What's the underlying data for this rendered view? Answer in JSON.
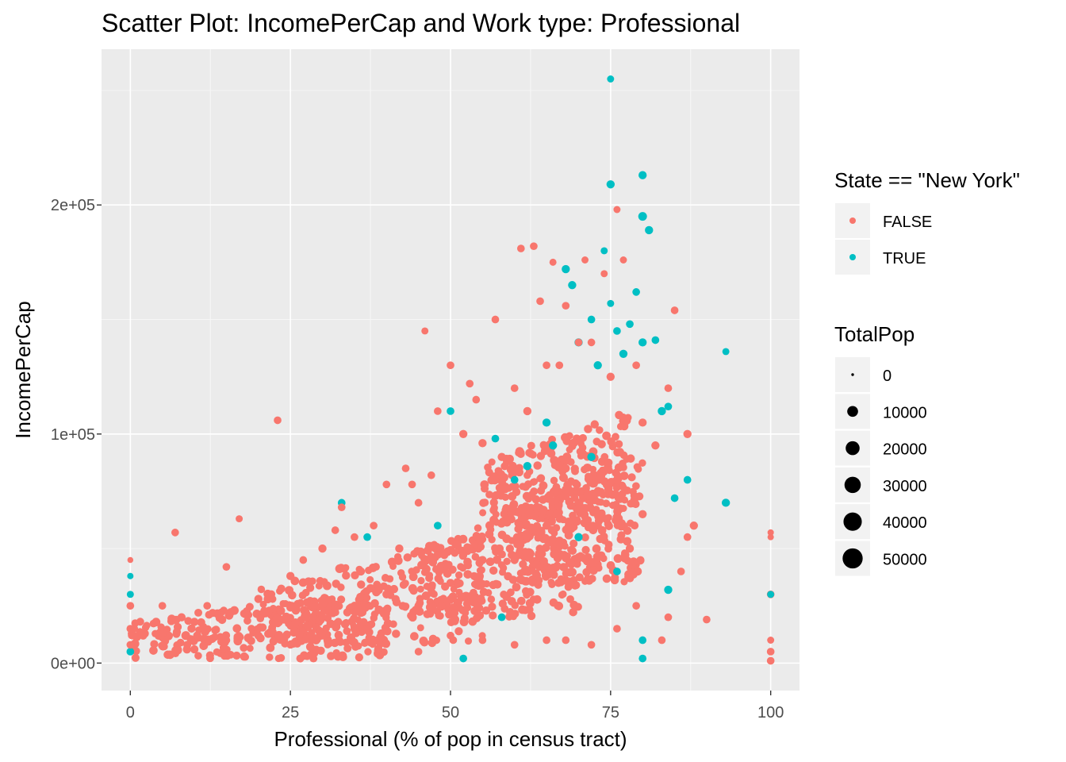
{
  "chart_data": {
    "type": "scatter",
    "title": "Scatter Plot: IncomePerCap and Work type: Professional",
    "xlabel": "Professional (% of pop in census tract)",
    "ylabel": "IncomePerCap",
    "xlim": [
      -4.5,
      104.5
    ],
    "ylim": [
      -12000,
      268000
    ],
    "x_ticks": [
      0,
      25,
      50,
      75,
      100
    ],
    "x_tick_labels": [
      "0",
      "25",
      "50",
      "75",
      "100"
    ],
    "y_ticks": [
      0,
      100000,
      200000
    ],
    "y_tick_labels": [
      "0e+00",
      "1e+05",
      "2e+05"
    ],
    "grid": true,
    "background": "#ebebeb",
    "gridline_color": "#ffffff",
    "legend_position": "right",
    "color_legend": {
      "title": "State == \"New York\"",
      "entries": [
        {
          "label": "FALSE",
          "color": "#f8766d"
        },
        {
          "label": "TRUE",
          "color": "#00bfc4"
        }
      ]
    },
    "size_legend": {
      "title": "TotalPop",
      "entries": [
        {
          "label": "0",
          "value": 0
        },
        {
          "label": "10000",
          "value": 10000
        },
        {
          "label": "20000",
          "value": 20000
        },
        {
          "label": "30000",
          "value": 30000
        },
        {
          "label": "40000",
          "value": 40000
        },
        {
          "label": "50000",
          "value": 50000
        }
      ]
    },
    "series": [
      {
        "state_is_new_york": "FALSE",
        "color": "#f8766d",
        "points": [
          [
            0,
            45000,
            1500
          ],
          [
            0,
            25000,
            4000
          ],
          [
            0,
            15000,
            4000
          ],
          [
            0,
            8000,
            4000
          ],
          [
            2,
            12000,
            5000
          ],
          [
            5,
            25000,
            4000
          ],
          [
            7,
            57000,
            4000
          ],
          [
            8,
            20000,
            5000
          ],
          [
            10,
            18000,
            5000
          ],
          [
            12,
            25000,
            4000
          ],
          [
            15,
            42000,
            4000
          ],
          [
            17,
            63000,
            3000
          ],
          [
            20,
            28000,
            5000
          ],
          [
            22,
            30000,
            5000
          ],
          [
            23,
            106000,
            4000
          ],
          [
            25,
            38000,
            5000
          ],
          [
            27,
            45000,
            4000
          ],
          [
            30,
            50000,
            5000
          ],
          [
            32,
            58000,
            4000
          ],
          [
            33,
            68000,
            4000
          ],
          [
            35,
            55000,
            4000
          ],
          [
            36,
            40000,
            5000
          ],
          [
            38,
            60000,
            4000
          ],
          [
            40,
            78000,
            4000
          ],
          [
            42,
            50000,
            5000
          ],
          [
            43,
            85000,
            4000
          ],
          [
            44,
            78000,
            4000
          ],
          [
            45,
            70000,
            4000
          ],
          [
            46,
            145000,
            3000
          ],
          [
            47,
            82000,
            4000
          ],
          [
            48,
            110000,
            4000
          ],
          [
            50,
            130000,
            4000
          ],
          [
            52,
            100000,
            5000
          ],
          [
            53,
            122000,
            4000
          ],
          [
            54,
            115000,
            4000
          ],
          [
            55,
            96000,
            5000
          ],
          [
            57,
            150000,
            4000
          ],
          [
            58,
            90000,
            5000
          ],
          [
            60,
            120000,
            4000
          ],
          [
            61,
            181000,
            4000
          ],
          [
            62,
            110000,
            5000
          ],
          [
            63,
            182000,
            4000
          ],
          [
            64,
            158000,
            4000
          ],
          [
            65,
            130000,
            4000
          ],
          [
            66,
            175000,
            3000
          ],
          [
            67,
            130000,
            4000
          ],
          [
            68,
            156000,
            4000
          ],
          [
            70,
            140000,
            4000
          ],
          [
            71,
            176000,
            3000
          ],
          [
            72,
            140000,
            4000
          ],
          [
            74,
            170000,
            3000
          ],
          [
            75,
            125000,
            5000
          ],
          [
            76,
            198000,
            3000
          ],
          [
            77,
            176000,
            3000
          ],
          [
            79,
            130000,
            4000
          ],
          [
            80,
            105000,
            5000
          ],
          [
            82,
            95000,
            5000
          ],
          [
            84,
            120000,
            4000
          ],
          [
            85,
            154000,
            4000
          ],
          [
            87,
            100000,
            5000
          ],
          [
            88,
            60000,
            5000
          ],
          [
            90,
            19000,
            4000
          ],
          [
            87,
            55000,
            4000
          ],
          [
            86,
            40000,
            4000
          ],
          [
            84,
            20000,
            4000
          ],
          [
            83,
            10000,
            4000
          ],
          [
            79,
            25000,
            4000
          ],
          [
            76,
            15000,
            4000
          ],
          [
            72,
            8000,
            4000
          ],
          [
            68,
            10000,
            4000
          ],
          [
            65,
            10000,
            4000
          ],
          [
            60,
            8000,
            4000
          ],
          [
            55,
            10000,
            4000
          ],
          [
            50,
            12000,
            4000
          ],
          [
            45,
            5000,
            4000
          ],
          [
            100,
            57000,
            2000
          ],
          [
            100,
            55000,
            2000
          ],
          [
            100,
            30000,
            4000
          ],
          [
            100,
            10000,
            3000
          ],
          [
            100,
            5000,
            4000
          ],
          [
            100,
            1000,
            4000
          ],
          [
            15,
            10000,
            4000
          ],
          [
            25,
            8000,
            4000
          ],
          [
            35,
            15000,
            5000
          ],
          [
            45,
            25000,
            5000
          ],
          [
            55,
            45000,
            5000
          ],
          [
            62,
            55000,
            5000
          ],
          [
            70,
            70000,
            5000
          ],
          [
            76,
            80000,
            5000
          ],
          [
            80,
            65000,
            5000
          ],
          [
            40,
            30000,
            5000
          ],
          [
            30,
            20000,
            5000
          ],
          [
            20,
            12000,
            5000
          ],
          [
            10,
            6000,
            5000
          ],
          [
            50,
            35000,
            5000
          ],
          [
            60,
            45000,
            5000
          ],
          [
            65,
            60000,
            5000
          ],
          [
            73,
            60000,
            5000
          ],
          [
            78,
            50000,
            5000
          ],
          [
            68,
            85000,
            5000
          ]
        ],
        "dense_regions": [
          {
            "x_from": 0,
            "x_to": 40,
            "y_from": 2000,
            "y_to": 32000
          },
          {
            "x_from": 20,
            "x_to": 55,
            "y_from": 8000,
            "y_to": 55000
          },
          {
            "x_from": 45,
            "x_to": 70,
            "y_from": 20000,
            "y_to": 75000
          },
          {
            "x_from": 60,
            "x_to": 80,
            "y_from": 35000,
            "y_to": 95000
          },
          {
            "x_from": 55,
            "x_to": 78,
            "y_from": 60000,
            "y_to": 110000
          }
        ]
      },
      {
        "state_is_new_york": "TRUE",
        "color": "#00bfc4",
        "points": [
          [
            0,
            38000,
            2000
          ],
          [
            0,
            30000,
            3000
          ],
          [
            0,
            5000,
            4000
          ],
          [
            33,
            70000,
            4000
          ],
          [
            37,
            55000,
            4000
          ],
          [
            50,
            110000,
            4000
          ],
          [
            52,
            2000,
            4000
          ],
          [
            57,
            98000,
            4000
          ],
          [
            60,
            80000,
            4000
          ],
          [
            65,
            105000,
            5000
          ],
          [
            68,
            172000,
            5000
          ],
          [
            69,
            165000,
            5000
          ],
          [
            70,
            140000,
            5000
          ],
          [
            72,
            150000,
            4000
          ],
          [
            73,
            130000,
            5000
          ],
          [
            74,
            180000,
            3000
          ],
          [
            75,
            157000,
            3000
          ],
          [
            75,
            209000,
            5000
          ],
          [
            75,
            255000,
            3000
          ],
          [
            76,
            145000,
            4000
          ],
          [
            77,
            135000,
            5000
          ],
          [
            78,
            148000,
            4000
          ],
          [
            79,
            162000,
            4000
          ],
          [
            80,
            213000,
            5000
          ],
          [
            80,
            195000,
            6000
          ],
          [
            81,
            189000,
            5000
          ],
          [
            80,
            140000,
            5000
          ],
          [
            82,
            141000,
            4000
          ],
          [
            83,
            110000,
            5000
          ],
          [
            84,
            112000,
            4000
          ],
          [
            85,
            72000,
            4000
          ],
          [
            87,
            80000,
            4000
          ],
          [
            93,
            70000,
            5000
          ],
          [
            93,
            136000,
            3000
          ],
          [
            100,
            30000,
            3000
          ],
          [
            80,
            10000,
            4000
          ],
          [
            80,
            2000,
            4000
          ],
          [
            84,
            32000,
            5000
          ],
          [
            76,
            40000,
            4000
          ],
          [
            70,
            55000,
            5000
          ],
          [
            72,
            90000,
            5000
          ],
          [
            66,
            95000,
            5000
          ],
          [
            62,
            86000,
            5000
          ],
          [
            58,
            20000,
            4000
          ],
          [
            48,
            60000,
            4000
          ]
        ]
      }
    ]
  }
}
